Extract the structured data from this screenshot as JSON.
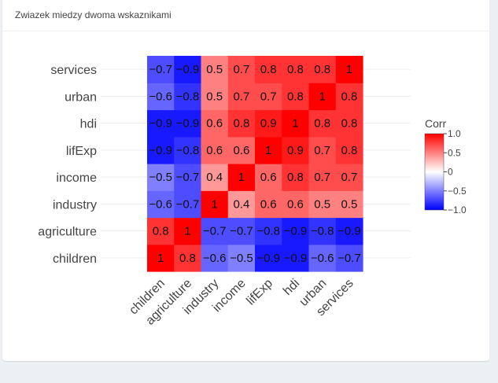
{
  "box": {
    "title": "Zwiazek miedzy dwoma wskaznikami"
  },
  "chart_data": {
    "type": "heatmap",
    "x": [
      "children",
      "agriculture",
      "industry",
      "income",
      "lifExp",
      "hdi",
      "urban",
      "services"
    ],
    "y": [
      "children",
      "agriculture",
      "industry",
      "income",
      "lifExp",
      "hdi",
      "urban",
      "services"
    ],
    "z": [
      [
        1,
        0.8,
        -0.6,
        -0.5,
        -0.9,
        -0.9,
        -0.6,
        -0.7
      ],
      [
        0.8,
        1,
        -0.7,
        -0.7,
        -0.8,
        -0.9,
        -0.8,
        -0.9
      ],
      [
        -0.6,
        -0.7,
        1,
        0.4,
        0.6,
        0.6,
        0.5,
        0.5
      ],
      [
        -0.5,
        -0.7,
        0.4,
        1,
        0.6,
        0.8,
        0.7,
        0.7
      ],
      [
        -0.9,
        -0.8,
        0.6,
        0.6,
        1,
        0.9,
        0.7,
        0.8
      ],
      [
        -0.9,
        -0.9,
        0.6,
        0.8,
        0.9,
        1,
        0.8,
        0.8
      ],
      [
        -0.6,
        -0.8,
        0.5,
        0.7,
        0.7,
        0.8,
        1,
        0.8
      ],
      [
        -0.7,
        -0.9,
        0.5,
        0.7,
        0.8,
        0.8,
        0.8,
        1
      ]
    ],
    "colorscale": [
      "#0000ff",
      "#ffffff",
      "#ff0000"
    ],
    "zmin": -1,
    "zmax": 1,
    "colorbar": {
      "title": "Corr",
      "ticks": [
        "1.0",
        "0.5",
        "0",
        "−0.5",
        "−1.0"
      ],
      "tickvals": [
        1,
        0.5,
        0,
        -0.5,
        -1
      ]
    }
  }
}
